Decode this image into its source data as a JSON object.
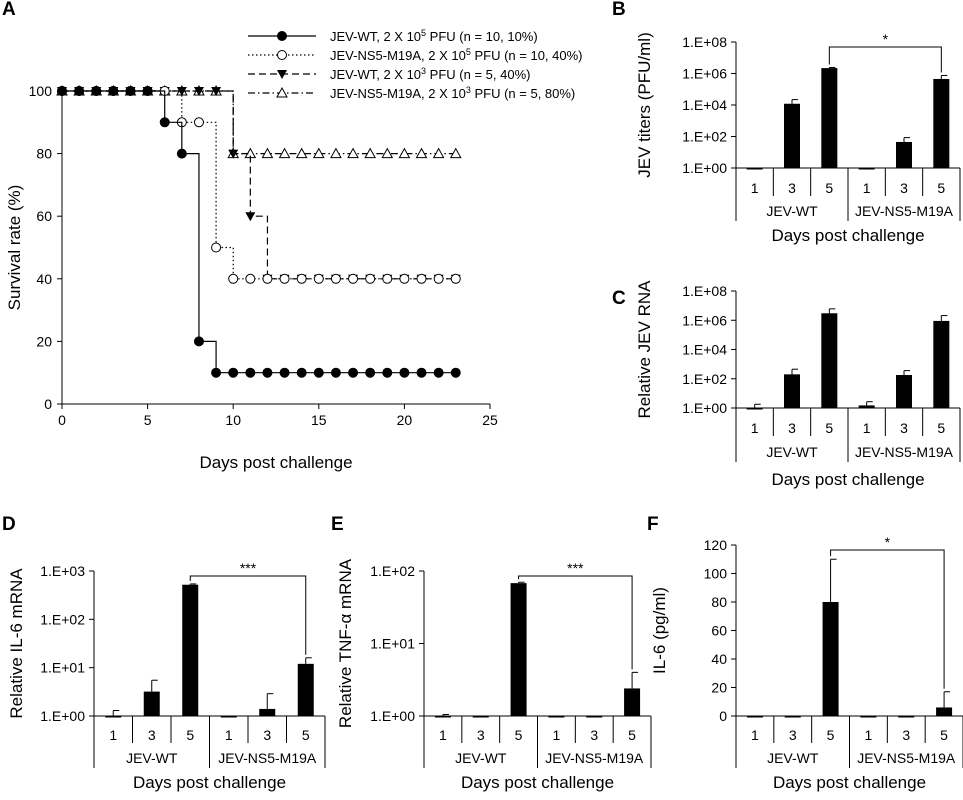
{
  "chart_data": [
    {
      "panel": "A",
      "type": "line",
      "xlabel": "Days post challenge",
      "ylabel": "Survival rate (%)",
      "xlim": [
        0,
        25
      ],
      "ylim": [
        0,
        100
      ],
      "xticks": [
        "0",
        "5",
        "10",
        "15",
        "20",
        "25"
      ],
      "yticks": [
        "0",
        "20",
        "40",
        "60",
        "80",
        "100"
      ],
      "grid": false,
      "legend_position": "top-right",
      "series": [
        {
          "name": "JEV-WT, 2 X 10",
          "name_exp": "5",
          "name_tail": " PFU (n = 10, 10%)",
          "style": "solid",
          "marker": "filled-circle",
          "x": [
            0,
            1,
            2,
            3,
            4,
            5,
            6,
            7,
            8,
            9,
            10,
            11,
            12,
            13,
            14,
            15,
            16,
            17,
            18,
            19,
            20,
            21,
            22,
            23
          ],
          "y": [
            100,
            100,
            100,
            100,
            100,
            100,
            90,
            80,
            20,
            10,
            10,
            10,
            10,
            10,
            10,
            10,
            10,
            10,
            10,
            10,
            10,
            10,
            10,
            10
          ]
        },
        {
          "name": "JEV-NS5-M19A, 2 X 10",
          "name_exp": "5",
          "name_tail": " PFU (n = 10, 40%)",
          "style": "dotted",
          "marker": "open-circle",
          "x": [
            0,
            1,
            2,
            3,
            4,
            5,
            6,
            7,
            8,
            9,
            10,
            11,
            12,
            13,
            14,
            15,
            16,
            17,
            18,
            19,
            20,
            21,
            22,
            23
          ],
          "y": [
            100,
            100,
            100,
            100,
            100,
            100,
            100,
            90,
            90,
            50,
            40,
            40,
            40,
            40,
            40,
            40,
            40,
            40,
            40,
            40,
            40,
            40,
            40,
            40
          ]
        },
        {
          "name": "JEV-WT, 2 X 10",
          "name_exp": "3",
          "name_tail": " PFU (n = 5, 40%)",
          "style": "dashed",
          "marker": "filled-triangle-down",
          "x": [
            0,
            1,
            2,
            3,
            4,
            5,
            6,
            7,
            8,
            9,
            10,
            11,
            12,
            13,
            14,
            15,
            16,
            17,
            18,
            19,
            20,
            21,
            22,
            23
          ],
          "y": [
            100,
            100,
            100,
            100,
            100,
            100,
            100,
            100,
            100,
            100,
            80,
            60,
            40,
            40,
            40,
            40,
            40,
            40,
            40,
            40,
            40,
            40,
            40,
            40
          ]
        },
        {
          "name": "JEV-NS5-M19A, 2 X 10",
          "name_exp": "3",
          "name_tail": " PFU (n = 5, 80%)",
          "style": "dash-dot",
          "marker": "open-triangle-up",
          "x": [
            0,
            1,
            2,
            3,
            4,
            5,
            6,
            7,
            8,
            9,
            10,
            11,
            12,
            13,
            14,
            15,
            16,
            17,
            18,
            19,
            20,
            21,
            22,
            23
          ],
          "y": [
            100,
            100,
            100,
            100,
            100,
            100,
            100,
            100,
            100,
            100,
            80,
            80,
            80,
            80,
            80,
            80,
            80,
            80,
            80,
            80,
            80,
            80,
            80,
            80
          ]
        }
      ]
    },
    {
      "panel": "B",
      "type": "bar",
      "scale": "log",
      "ylabel": "JEV titers (PFU/ml)",
      "xlabel": "Days post challenge",
      "ylim": [
        1,
        100000000
      ],
      "yticks": [
        "1.E+00",
        "1.E+02",
        "1.E+04",
        "1.E+06",
        "1.E+08"
      ],
      "categories": [
        "1",
        "3",
        "5",
        "1",
        "3",
        "5"
      ],
      "groups": [
        "JEV-WT",
        "JEV-NS5-M19A"
      ],
      "values": [
        1,
        12000,
        2200000,
        1,
        45,
        450000
      ],
      "errors": [
        0,
        10000,
        200000,
        0,
        40,
        300000
      ],
      "significance": {
        "from": 2,
        "to": 5,
        "label": "*"
      }
    },
    {
      "panel": "C",
      "type": "bar",
      "scale": "log",
      "ylabel": "Relative JEV RNA",
      "xlabel": "Days post challenge",
      "ylim": [
        1,
        100000000
      ],
      "yticks": [
        "1.E+00",
        "1.E+02",
        "1.E+04",
        "1.E+06",
        "1.E+08"
      ],
      "categories": [
        "1",
        "3",
        "5",
        "1",
        "3",
        "5"
      ],
      "groups": [
        "JEV-WT",
        "JEV-NS5-M19A"
      ],
      "values": [
        1,
        200,
        3000000,
        1.5,
        180,
        900000
      ],
      "errors": [
        0.8,
        250,
        3000000,
        1.2,
        180,
        1200000
      ]
    },
    {
      "panel": "D",
      "type": "bar",
      "scale": "log",
      "ylabel": "Relative IL-6 mRNA",
      "xlabel": "Days post challenge",
      "ylim": [
        1,
        1000
      ],
      "yticks": [
        "1.E+00",
        "1.E+01",
        "1.E+02",
        "1.E+03"
      ],
      "categories": [
        "1",
        "3",
        "5",
        "1",
        "3",
        "5"
      ],
      "groups": [
        "JEV-WT",
        "JEV-NS5-M19A"
      ],
      "values": [
        1,
        3.2,
        520,
        0.97,
        1.4,
        12
      ],
      "errors": [
        0.3,
        2.3,
        20,
        0,
        1.5,
        4
      ],
      "significance": {
        "from": 2,
        "to": 5,
        "label": "***"
      }
    },
    {
      "panel": "E",
      "type": "bar",
      "scale": "log",
      "ylabel": "Relative TNF-α mRNA",
      "xlabel": "Days post challenge",
      "ylim": [
        1,
        100
      ],
      "yticks": [
        "1.E+00",
        "1.E+01",
        "1.E+02"
      ],
      "categories": [
        "1",
        "3",
        "5",
        "1",
        "3",
        "5"
      ],
      "groups": [
        "JEV-WT",
        "JEV-NS5-M19A"
      ],
      "values": [
        1,
        0.98,
        68,
        0.98,
        0.98,
        2.4
      ],
      "errors": [
        0.05,
        0,
        2,
        0,
        0,
        1.6
      ],
      "significance": {
        "from": 2,
        "to": 5,
        "label": "***"
      }
    },
    {
      "panel": "F",
      "type": "bar",
      "scale": "linear",
      "ylabel": "IL-6 (pg/ml)",
      "xlabel": "Days post challenge",
      "ylim": [
        0,
        120
      ],
      "yticks": [
        "0",
        "20",
        "40",
        "60",
        "80",
        "100",
        "120"
      ],
      "categories": [
        "1",
        "3",
        "5",
        "1",
        "3",
        "5"
      ],
      "groups": [
        "JEV-WT",
        "JEV-NS5-M19A"
      ],
      "values": [
        0,
        0,
        80,
        0,
        0,
        6
      ],
      "errors": [
        0,
        0,
        30,
        0,
        0,
        11
      ],
      "significance": {
        "from": 2,
        "to": 5,
        "label": "*"
      }
    }
  ]
}
